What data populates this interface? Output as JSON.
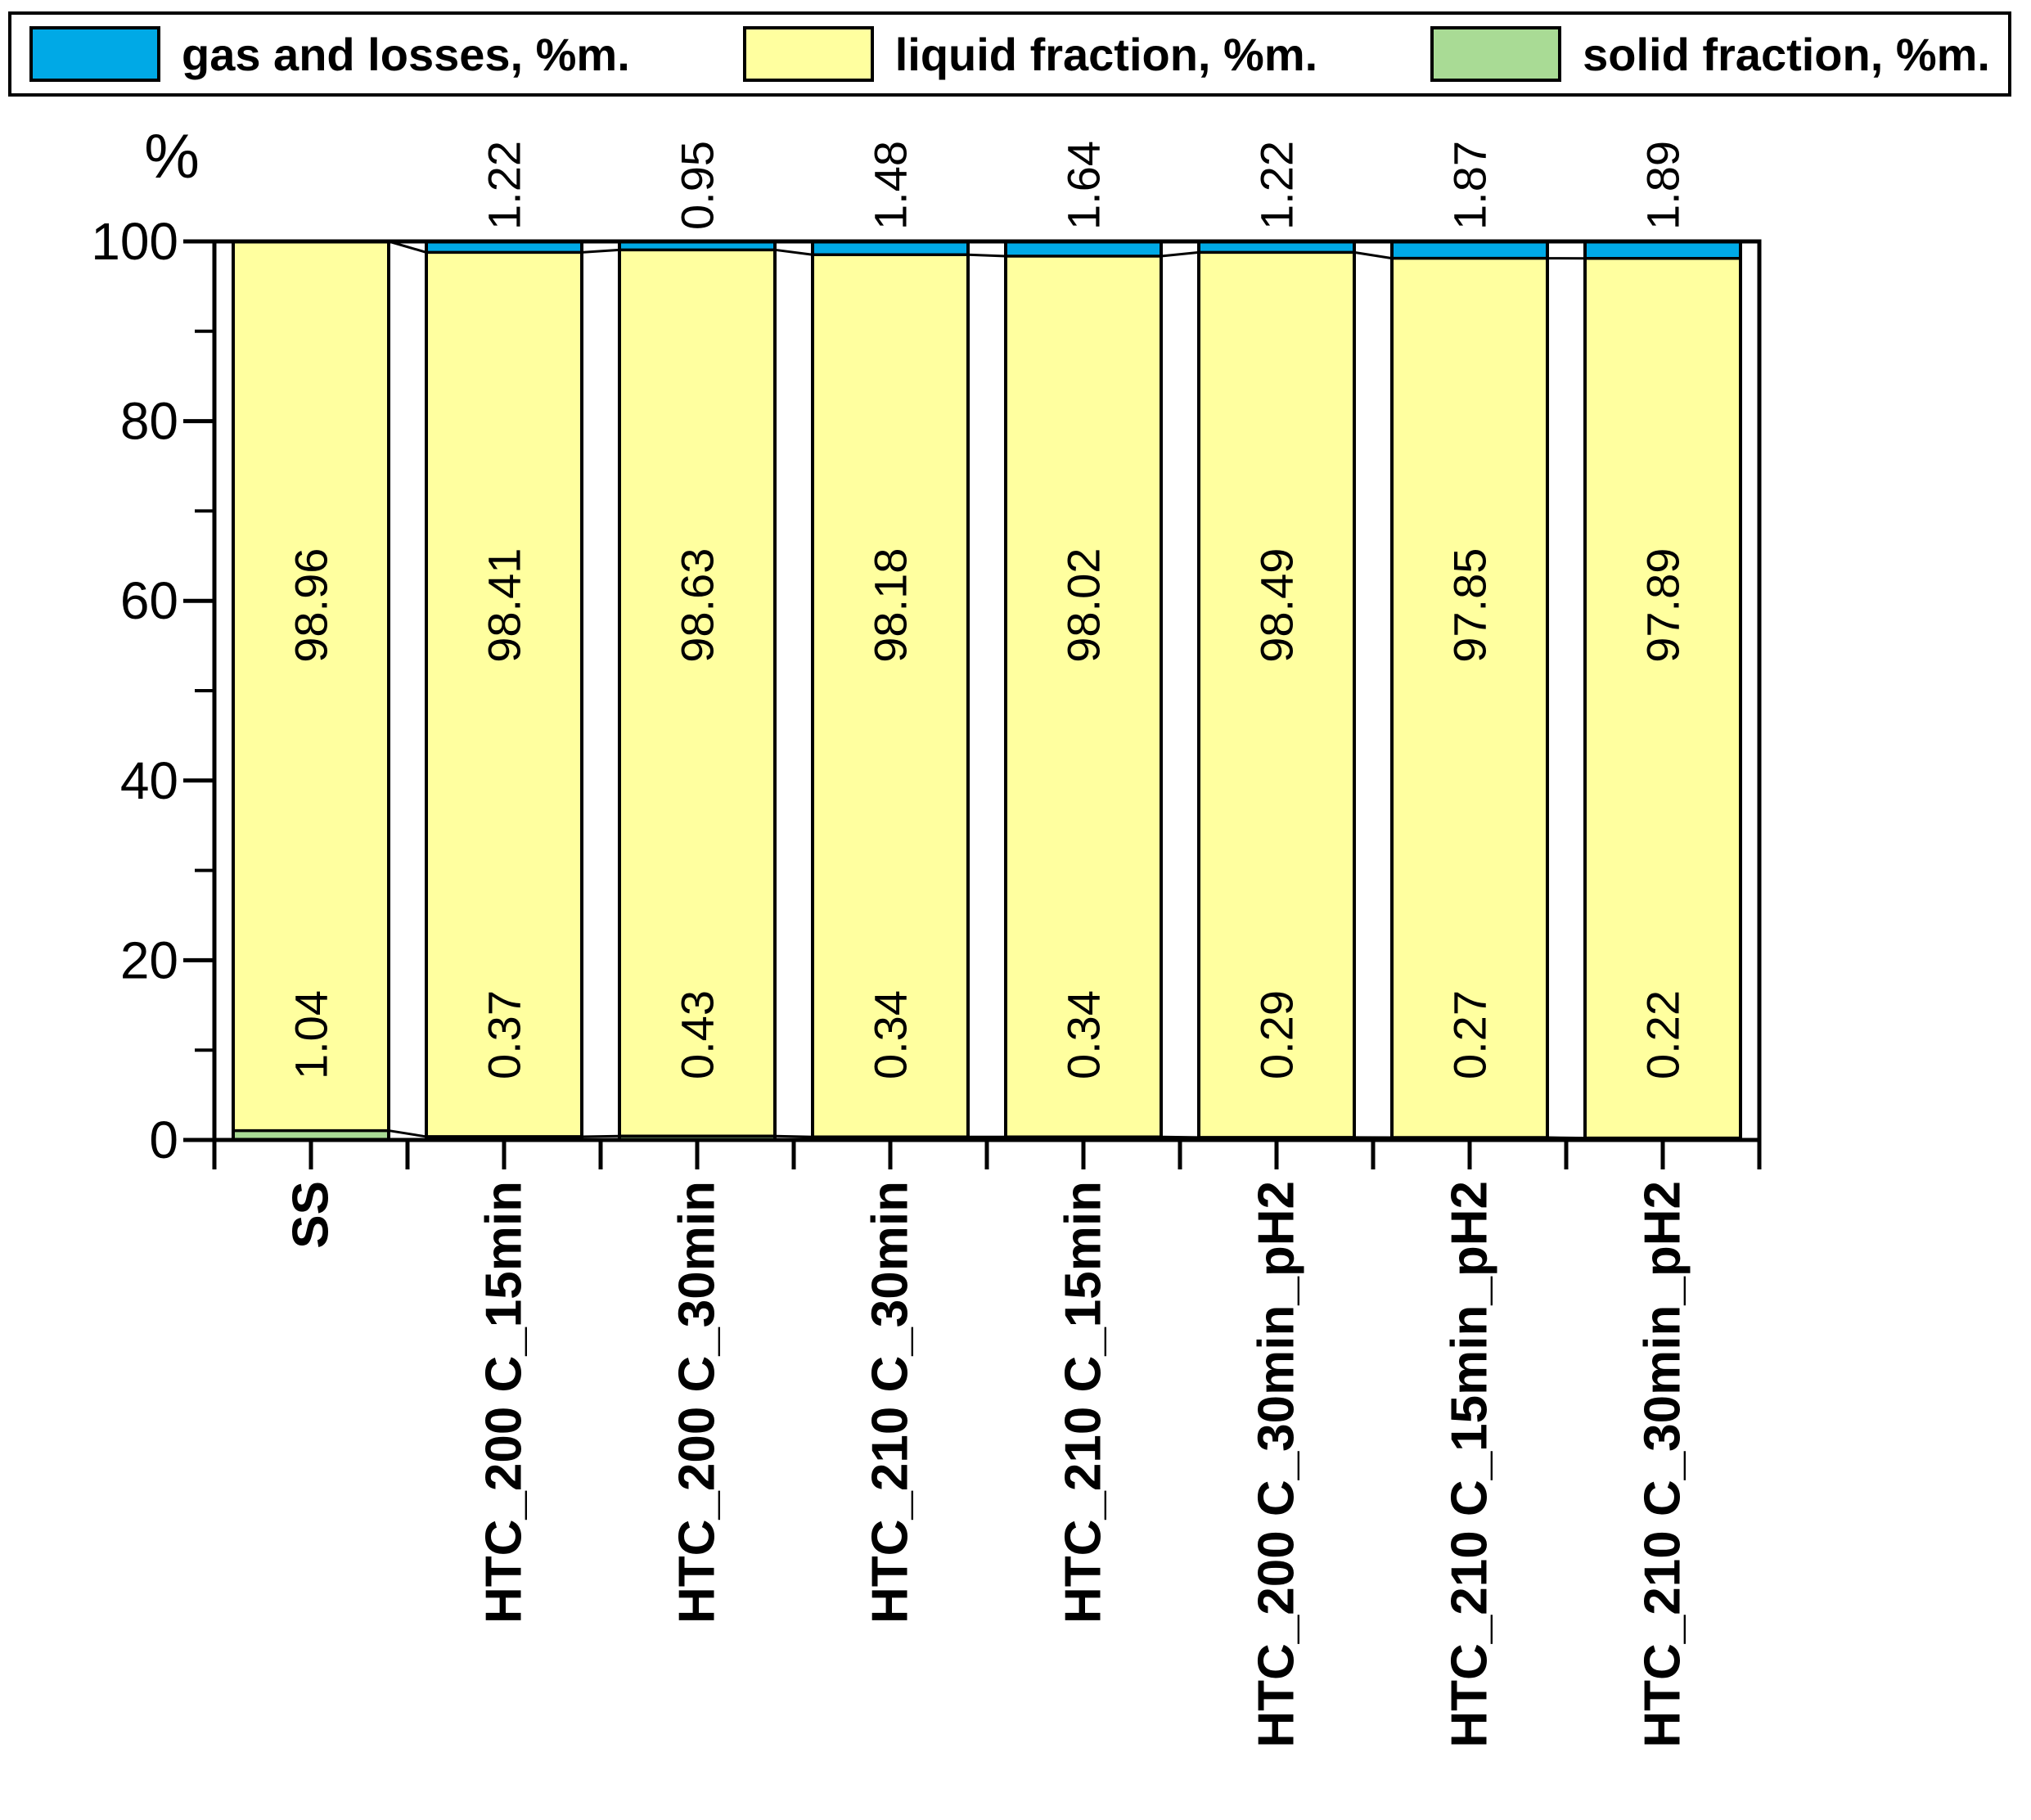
{
  "legend": {
    "items": [
      {
        "label": "gas and losses, %m.",
        "color": "#00A9E6"
      },
      {
        "label": "liquid fraction, %m.",
        "color": "#FFFF9F"
      },
      {
        "label": "solid fraction, %m.",
        "color": "#A9DB95"
      }
    ]
  },
  "chart_data": {
    "type": "bar",
    "stacked": true,
    "legend_position": "top",
    "y_axis": {
      "title": "%",
      "min": 0,
      "max": 100,
      "major_ticks": [
        0,
        20,
        40,
        60,
        80,
        100
      ],
      "minor_ticks": [
        10,
        30,
        50,
        70,
        90
      ]
    },
    "categories": [
      "SS",
      "HTC_200 C_15min",
      "HTC_200 C_30min",
      "HTC_210 C_30min",
      "HTC_210 C_15min",
      "HTC_200 C_30min_pH2",
      "HTC_210 C_15min_pH2",
      "HTC_210 C_30min_pH2"
    ],
    "series": [
      {
        "name": "solid fraction, %m.",
        "color": "#A9DB95",
        "values": [
          1.04,
          0.37,
          0.43,
          0.34,
          0.34,
          0.29,
          0.27,
          0.22
        ]
      },
      {
        "name": "liquid fraction, %m.",
        "color": "#FFFF9F",
        "values": [
          98.96,
          98.41,
          98.63,
          98.18,
          98.02,
          98.49,
          97.85,
          97.89
        ]
      },
      {
        "name": "gas and losses, %m.",
        "color": "#00A9E6",
        "values": [
          0,
          1.22,
          0.95,
          1.48,
          1.64,
          1.22,
          1.87,
          1.89
        ]
      }
    ]
  }
}
